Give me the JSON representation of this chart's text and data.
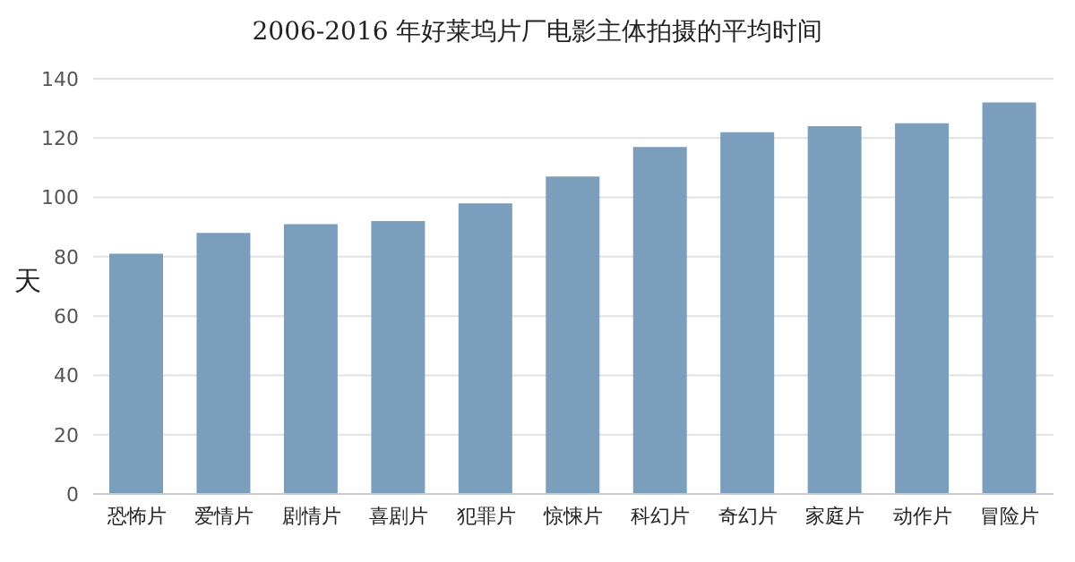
{
  "chart_data": {
    "type": "bar",
    "title": "2006-2016 年好莱坞片厂电影主体拍摄的平均时间",
    "ylabel": "天",
    "categories": [
      "恐怖片",
      "爱情片",
      "剧情片",
      "喜剧片",
      "犯罪片",
      "惊悚片",
      "科幻片",
      "奇幻片",
      "家庭片",
      "动作片",
      "冒险片"
    ],
    "values": [
      81,
      88,
      91,
      92,
      98,
      107,
      117,
      122,
      124,
      125,
      132
    ],
    "color": "#7b9ebd",
    "ylim": [
      0,
      140
    ],
    "yticks": [
      0,
      20,
      40,
      60,
      80,
      100,
      120,
      140
    ],
    "grid": "y"
  }
}
